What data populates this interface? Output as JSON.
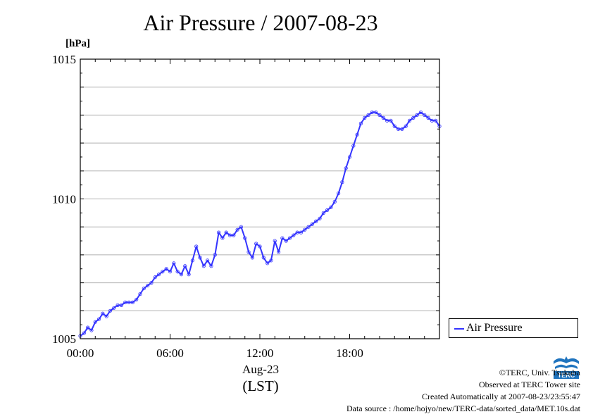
{
  "chart_data": {
    "type": "line",
    "title": "Air Pressure / 2007-08-23",
    "ylabel": "[hPa]",
    "xlabel": "Aug-23",
    "xlabel_sub": "(LST)",
    "ylim": [
      1005,
      1015
    ],
    "xlim": [
      0,
      24
    ],
    "grid": true,
    "legend_position": "right",
    "y_ticks": [
      {
        "value": 1005,
        "label": "1005"
      },
      {
        "value": 1010,
        "label": "1010"
      },
      {
        "value": 1015,
        "label": "1015"
      }
    ],
    "x_ticks": [
      {
        "value": 0,
        "label": "00:00"
      },
      {
        "value": 6,
        "label": "06:00"
      },
      {
        "value": 12,
        "label": "12:00"
      },
      {
        "value": 18,
        "label": "18:00"
      }
    ],
    "series": [
      {
        "name": "Air Pressure",
        "color": "#3333ff",
        "x": [
          0,
          0.25,
          0.5,
          0.75,
          1.0,
          1.25,
          1.5,
          1.75,
          2.0,
          2.25,
          2.5,
          2.75,
          3.0,
          3.25,
          3.5,
          3.75,
          4.0,
          4.25,
          4.5,
          4.75,
          5.0,
          5.25,
          5.5,
          5.75,
          6.0,
          6.25,
          6.5,
          6.75,
          7.0,
          7.25,
          7.5,
          7.75,
          8.0,
          8.25,
          8.5,
          8.75,
          9.0,
          9.25,
          9.5,
          9.75,
          10.0,
          10.25,
          10.5,
          10.75,
          11.0,
          11.25,
          11.5,
          11.75,
          12.0,
          12.25,
          12.5,
          12.75,
          13.0,
          13.25,
          13.5,
          13.75,
          14.0,
          14.25,
          14.5,
          14.75,
          15.0,
          15.25,
          15.5,
          15.75,
          16.0,
          16.25,
          16.5,
          16.75,
          17.0,
          17.25,
          17.5,
          17.75,
          18.0,
          18.25,
          18.5,
          18.75,
          19.0,
          19.25,
          19.5,
          19.75,
          20.0,
          20.25,
          20.5,
          20.75,
          21.0,
          21.25,
          21.5,
          21.75,
          22.0,
          22.25,
          22.5,
          22.75,
          23.0,
          23.25,
          23.5,
          23.75,
          24.0
        ],
        "values": [
          1005.1,
          1005.2,
          1005.4,
          1005.3,
          1005.6,
          1005.7,
          1005.9,
          1005.8,
          1006.0,
          1006.1,
          1006.2,
          1006.2,
          1006.3,
          1006.3,
          1006.3,
          1006.4,
          1006.6,
          1006.8,
          1006.9,
          1007.0,
          1007.2,
          1007.3,
          1007.4,
          1007.5,
          1007.4,
          1007.7,
          1007.4,
          1007.3,
          1007.6,
          1007.3,
          1007.8,
          1008.3,
          1007.9,
          1007.6,
          1007.8,
          1007.6,
          1008.0,
          1008.8,
          1008.6,
          1008.8,
          1008.7,
          1008.7,
          1008.9,
          1009.0,
          1008.6,
          1008.1,
          1007.9,
          1008.4,
          1008.3,
          1007.9,
          1007.7,
          1007.8,
          1008.5,
          1008.1,
          1008.6,
          1008.5,
          1008.6,
          1008.7,
          1008.8,
          1008.8,
          1008.9,
          1009.0,
          1009.1,
          1009.2,
          1009.3,
          1009.5,
          1009.6,
          1009.7,
          1009.9,
          1010.2,
          1010.6,
          1011.1,
          1011.5,
          1011.9,
          1012.3,
          1012.7,
          1012.9,
          1013.0,
          1013.1,
          1013.1,
          1013.0,
          1012.9,
          1012.8,
          1012.8,
          1012.6,
          1012.5,
          1012.5,
          1012.6,
          1012.8,
          1012.9,
          1013.0,
          1013.1,
          1013.0,
          1012.9,
          1012.8,
          1012.8,
          1012.6
        ]
      }
    ]
  },
  "legend": {
    "label": "Air Pressure"
  },
  "footer": {
    "line1": "©TERC, Univ. Tsukuba",
    "line2": "Observed at TERC Tower site",
    "line3": "Created Automatically at 2007-08-23/23:55:47",
    "line4": "Data source : /home/hojyo/new/TERC-data/sorted_data/MET.10s.dat"
  },
  "logo": {
    "text": "TERC"
  }
}
